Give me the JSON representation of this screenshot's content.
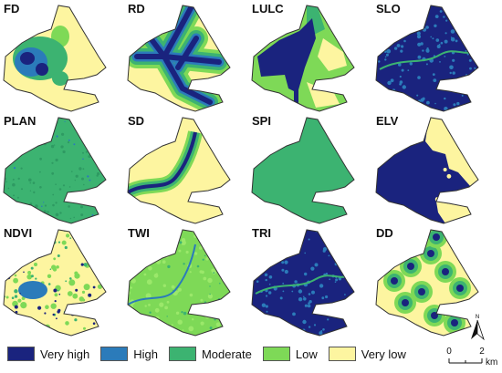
{
  "panels": [
    {
      "label": "FD",
      "pattern": "fd"
    },
    {
      "label": "RD",
      "pattern": "rd"
    },
    {
      "label": "LULC",
      "pattern": "lulc"
    },
    {
      "label": "SLO",
      "pattern": "slo"
    },
    {
      "label": "PLAN",
      "pattern": "plan"
    },
    {
      "label": "SD",
      "pattern": "sd"
    },
    {
      "label": "SPI",
      "pattern": "spi"
    },
    {
      "label": "ELV",
      "pattern": "elv"
    },
    {
      "label": "NDVI",
      "pattern": "ndvi"
    },
    {
      "label": "TWI",
      "pattern": "twi"
    },
    {
      "label": "TRI",
      "pattern": "tri"
    },
    {
      "label": "DD",
      "pattern": "dd"
    }
  ],
  "legend": [
    {
      "label": "Very high",
      "color": "#1a237e"
    },
    {
      "label": "High",
      "color": "#2b7bba"
    },
    {
      "label": "Moderate",
      "color": "#3cb371"
    },
    {
      "label": "Low",
      "color": "#7ed957"
    },
    {
      "label": "Very low",
      "color": "#fdf5a0"
    }
  ],
  "scale": {
    "start": "0",
    "end": "2",
    "unit": "km"
  },
  "north_label": "N"
}
